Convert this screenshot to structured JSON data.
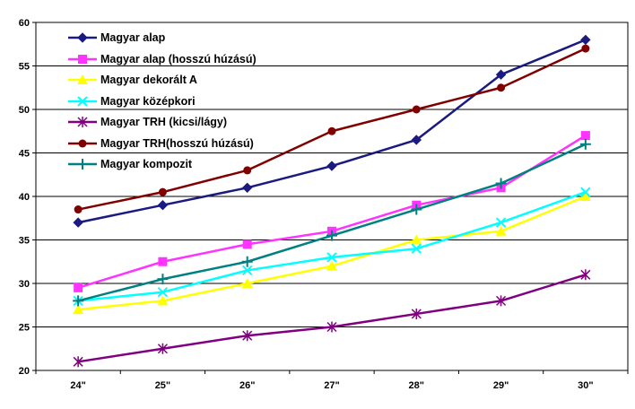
{
  "chart_data": {
    "type": "line",
    "title": "",
    "xlabel": "",
    "ylabel": "",
    "categories": [
      "24\"",
      "25\"",
      "26\"",
      "27\"",
      "28\"",
      "29\"",
      "30\""
    ],
    "ylim": [
      20,
      60
    ],
    "yticks": [
      "20",
      "25",
      "30",
      "35",
      "40",
      "45",
      "50",
      "55",
      "60"
    ],
    "grid": "horizontal",
    "legend_position": "top-left",
    "series": [
      {
        "name": "Magyar alap",
        "color": "#1a1a80",
        "marker": "diamond",
        "values": [
          37,
          39,
          41,
          43.5,
          46.5,
          54,
          58
        ]
      },
      {
        "name": "Magyar alap (hosszú húzású)",
        "color": "#ff33ff",
        "marker": "square",
        "values": [
          29.5,
          32.5,
          34.5,
          36,
          39,
          41,
          47
        ]
      },
      {
        "name": "Magyar dekorált A",
        "color": "#ffff00",
        "marker": "triangle",
        "values": [
          27,
          28,
          30,
          32,
          35,
          36,
          40
        ]
      },
      {
        "name": "Magyar középkori",
        "color": "#00ffff",
        "marker": "x",
        "values": [
          28,
          29,
          31.5,
          33,
          34,
          37,
          40.5
        ]
      },
      {
        "name": "Magyar TRH (kicsi/lágy)",
        "color": "#800080",
        "marker": "star",
        "values": [
          21,
          22.5,
          24,
          25,
          26.5,
          28,
          31
        ]
      },
      {
        "name": "Magyar TRH(hosszú húzású)",
        "color": "#800000",
        "marker": "circle",
        "values": [
          38.5,
          40.5,
          43,
          47.5,
          50,
          52.5,
          57
        ]
      },
      {
        "name": "Magyar kompozit",
        "color": "#008080",
        "marker": "plus",
        "values": [
          28,
          30.5,
          32.5,
          35.5,
          38.5,
          41.5,
          46
        ]
      }
    ]
  }
}
